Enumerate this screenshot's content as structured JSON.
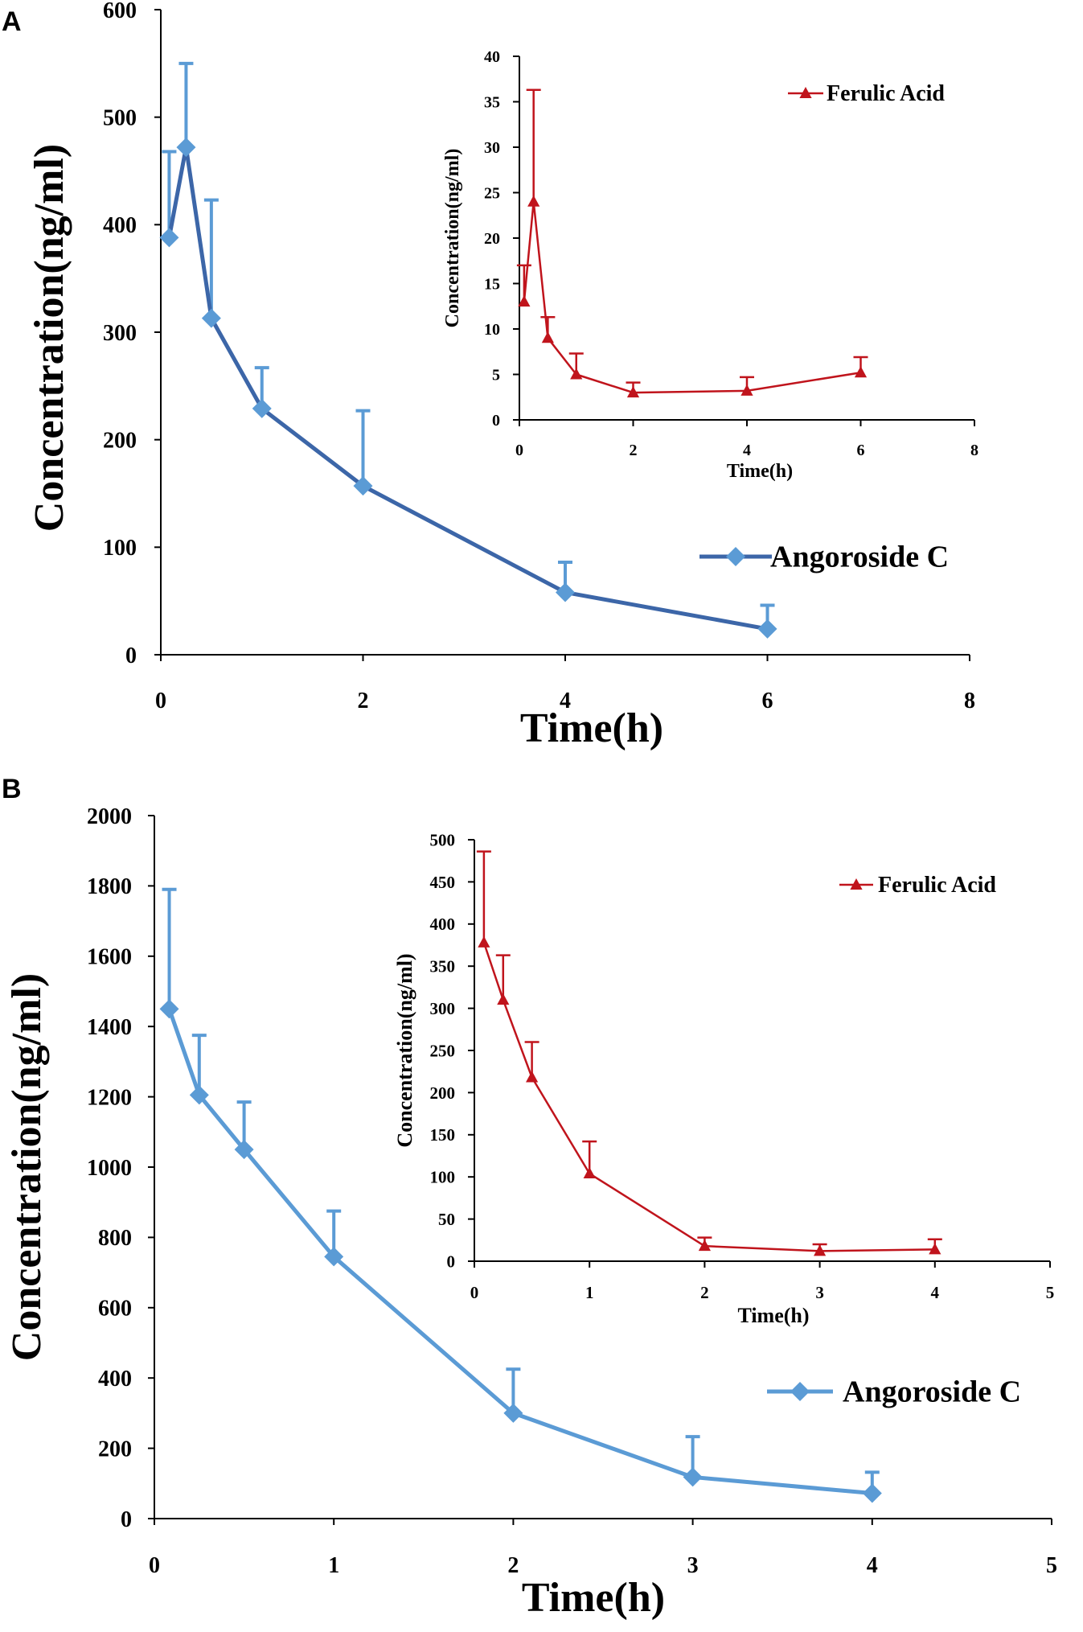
{
  "figure": {
    "panels": [
      "A",
      "B"
    ]
  },
  "colors": {
    "main_line": "#3c66a8",
    "main_marker": "#5b9bd5",
    "inset": "#c0141c",
    "axis": "#000000"
  },
  "chart_data": [
    {
      "id": "A-main",
      "panel": "A",
      "type": "line",
      "xlabel": "Time(h)",
      "ylabel": "Concentration(ng/ml)",
      "xlim": [
        0,
        8
      ],
      "ylim": [
        0,
        600
      ],
      "xticks": [
        "0",
        "2",
        "4",
        "6",
        "8"
      ],
      "yticks": [
        "0",
        "100",
        "200",
        "300",
        "400",
        "500",
        "600"
      ],
      "legend": "right-center",
      "series": [
        {
          "name": "Angoroside C",
          "marker": "diamond",
          "x": [
            0.083,
            0.25,
            0.5,
            1,
            2,
            4,
            6
          ],
          "y": [
            388,
            472,
            313,
            229,
            157,
            58,
            24
          ],
          "error": [
            80,
            78,
            110,
            38,
            70,
            28,
            22
          ]
        }
      ]
    },
    {
      "id": "A-inset",
      "panel": "A",
      "type": "line",
      "xlabel": "Time(h)",
      "ylabel": "Concentration(ng/ml)",
      "xlim": [
        0,
        8
      ],
      "ylim": [
        0,
        40
      ],
      "xticks": [
        "0",
        "2",
        "4",
        "6",
        "8"
      ],
      "yticks": [
        "0",
        "5",
        "10",
        "15",
        "20",
        "25",
        "30",
        "35",
        "40"
      ],
      "legend": "top-right",
      "series": [
        {
          "name": "Ferulic Acid",
          "marker": "triangle",
          "x": [
            0.083,
            0.25,
            0.5,
            1,
            2,
            4,
            6
          ],
          "y": [
            13,
            24,
            9,
            5,
            3,
            3.2,
            5.2
          ],
          "error": [
            4,
            12.3,
            2.3,
            2.3,
            1.1,
            1.5,
            1.7
          ]
        }
      ]
    },
    {
      "id": "B-main",
      "panel": "B",
      "type": "line",
      "xlabel": "Time(h)",
      "ylabel": "Concentration(ng/ml)",
      "xlim": [
        0,
        5
      ],
      "ylim": [
        0,
        2000
      ],
      "xticks": [
        "0",
        "1",
        "2",
        "3",
        "4",
        "5"
      ],
      "yticks": [
        "0",
        "200",
        "400",
        "600",
        "800",
        "1000",
        "1200",
        "1400",
        "1600",
        "1800",
        "2000"
      ],
      "legend": "right-bottom",
      "series": [
        {
          "name": "Angoroside C",
          "marker": "diamond",
          "x": [
            0.083,
            0.25,
            0.5,
            1,
            2,
            3,
            4
          ],
          "y": [
            1450,
            1205,
            1050,
            745,
            300,
            118,
            72
          ],
          "error": [
            340,
            170,
            135,
            130,
            125,
            115,
            60
          ]
        }
      ]
    },
    {
      "id": "B-inset",
      "panel": "B",
      "type": "line",
      "xlabel": "Time(h)",
      "ylabel": "Concentration(ng/ml)",
      "xlim": [
        0,
        5
      ],
      "ylim": [
        0,
        500
      ],
      "xticks": [
        "0",
        "1",
        "2",
        "3",
        "4",
        "5"
      ],
      "yticks": [
        "0",
        "50",
        "100",
        "150",
        "200",
        "250",
        "300",
        "350",
        "400",
        "450",
        "500"
      ],
      "legend": "top-right",
      "series": [
        {
          "name": "Ferulic Acid",
          "marker": "triangle",
          "x": [
            0.083,
            0.25,
            0.5,
            1,
            2,
            3,
            4
          ],
          "y": [
            378,
            310,
            218,
            104,
            18,
            12,
            14
          ],
          "error": [
            108,
            53,
            42,
            38,
            10,
            8,
            12
          ]
        }
      ]
    }
  ]
}
